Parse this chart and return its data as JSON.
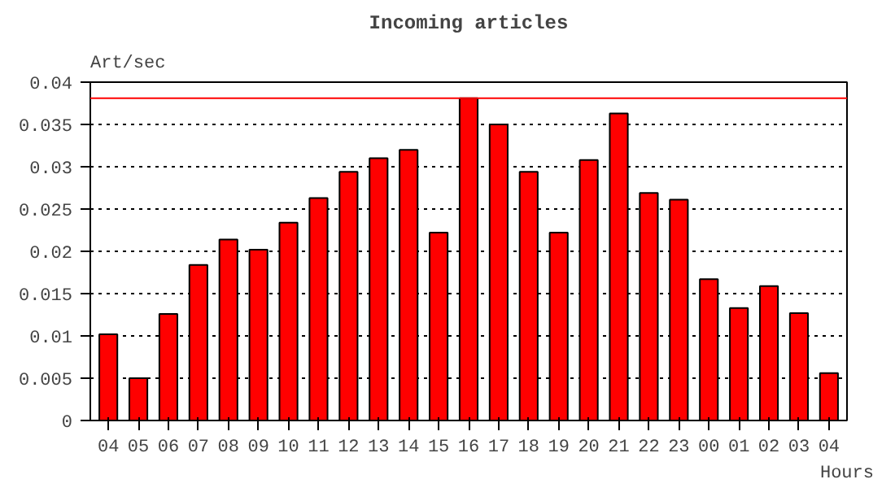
{
  "chart_data": {
    "type": "bar",
    "title": "Incoming articles",
    "ylabel": "Art/sec",
    "xlabel": "Hours",
    "categories": [
      "04",
      "05",
      "06",
      "07",
      "08",
      "09",
      "10",
      "11",
      "12",
      "13",
      "14",
      "15",
      "16",
      "17",
      "18",
      "19",
      "20",
      "21",
      "22",
      "23",
      "00",
      "01",
      "02",
      "03",
      "04"
    ],
    "series": [
      {
        "color": "#ff0000",
        "values": [
          0.0102,
          0.005,
          0.0126,
          0.0184,
          0.0214,
          0.0202,
          0.0234,
          0.0263,
          0.0294,
          0.031,
          0.032,
          0.0222,
          0.0381,
          0.035,
          0.0294,
          0.0222,
          0.0308,
          0.0363,
          0.0269,
          0.0261,
          0.0167,
          0.0133,
          0.0159,
          0.0127,
          0.0056
        ]
      }
    ],
    "ylim": [
      0,
      0.04
    ],
    "yticks": [
      0,
      0.005,
      0.01,
      0.015,
      0.02,
      0.025,
      0.03,
      0.035,
      0.04
    ],
    "grid": "y",
    "ref_lines": [
      {
        "axis": "y",
        "value": 0.0381,
        "color": "#ff0000"
      }
    ]
  }
}
